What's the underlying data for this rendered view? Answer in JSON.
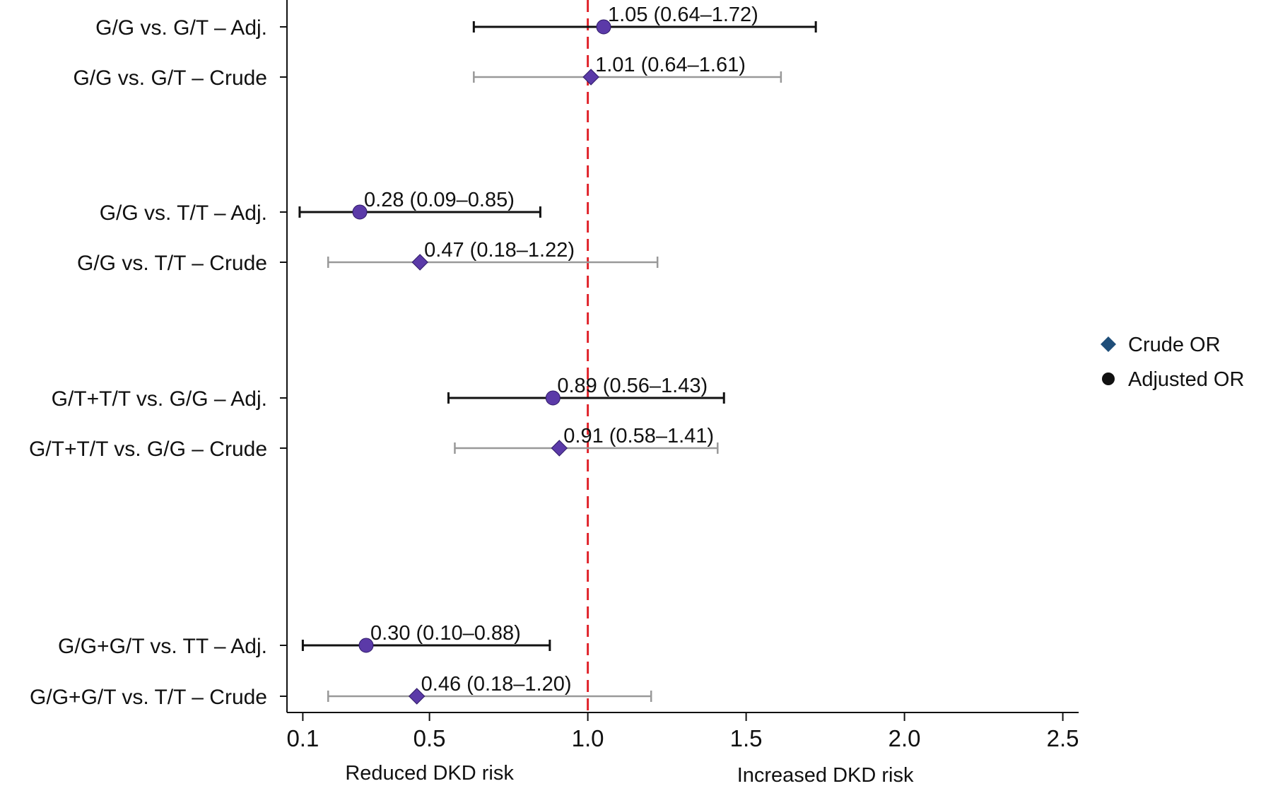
{
  "chart_data": {
    "type": "forest",
    "title": "",
    "xlim": [
      0.05,
      2.55
    ],
    "x_ticks": [
      0.1,
      0.5,
      1.0,
      1.5,
      2.0,
      2.5
    ],
    "x_tick_labels": [
      "0.1",
      "0.5",
      "1.0",
      "1.5",
      "2.0",
      "2.5"
    ],
    "reference_line": 1.0,
    "x_annotation_left": "Reduced DKD risk",
    "x_annotation_right": "Increased DKD risk",
    "colors": {
      "marker": "#5b3aa8",
      "adjusted_ci": "#111111",
      "crude_ci": "#999999",
      "reference": "#e0242b",
      "legend_crude": "#1f4e79",
      "legend_adjusted": "#111111"
    },
    "legend": [
      {
        "label": "Crude OR",
        "marker": "diamond"
      },
      {
        "label": "Adjusted OR",
        "marker": "circle"
      }
    ],
    "rows": [
      {
        "label": "G/G vs. G/T – Adj.",
        "kind": "adjusted",
        "or": 1.05,
        "lo": 0.64,
        "hi": 1.72,
        "text": "1.05 (0.64–1.72)"
      },
      {
        "label": "G/G vs. G/T – Crude",
        "kind": "crude",
        "or": 1.01,
        "lo": 0.64,
        "hi": 1.61,
        "text": "1.01 (0.64–1.61)"
      },
      {
        "label": "G/G vs. T/T – Adj.",
        "kind": "adjusted",
        "or": 0.28,
        "lo": 0.09,
        "hi": 0.85,
        "text": "0.28 (0.09–0.85)"
      },
      {
        "label": "G/G vs. T/T – Crude",
        "kind": "crude",
        "or": 0.47,
        "lo": 0.18,
        "hi": 1.22,
        "text": "0.47 (0.18–1.22)"
      },
      {
        "label": "G/T+T/T vs. G/G – Adj.",
        "kind": "adjusted",
        "or": 0.89,
        "lo": 0.56,
        "hi": 1.43,
        "text": "0.89 (0.56–1.43)"
      },
      {
        "label": "G/T+T/T vs. G/G  – Crude",
        "kind": "crude",
        "or": 0.91,
        "lo": 0.58,
        "hi": 1.41,
        "text": "0.91 (0.58–1.41)"
      },
      {
        "label": "G/G+G/T vs. TT – Adj.",
        "kind": "adjusted",
        "or": 0.3,
        "lo": 0.1,
        "hi": 0.88,
        "text": "0.30 (0.10–0.88)"
      },
      {
        "label": "G/G+G/T vs. T/T – Crude",
        "kind": "crude",
        "or": 0.46,
        "lo": 0.18,
        "hi": 1.2,
        "text": "0.46 (0.18–1.20)"
      }
    ]
  }
}
